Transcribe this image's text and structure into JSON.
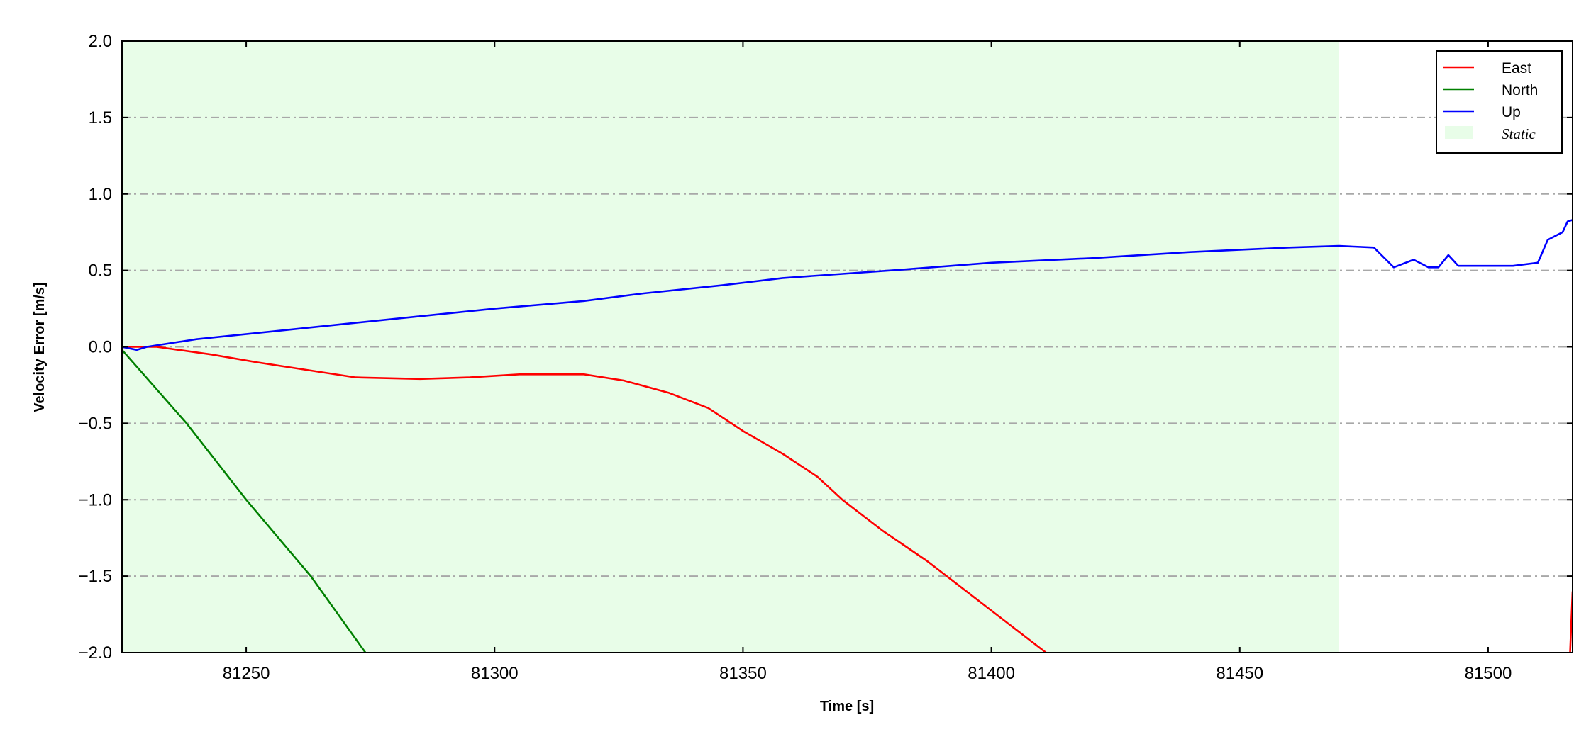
{
  "chart_data": {
    "type": "line",
    "title": "",
    "xlabel": "Time [s]",
    "ylabel": "Velocity Error [m/s]",
    "xlim": [
      81225,
      81517
    ],
    "ylim": [
      -2.0,
      2.0
    ],
    "xticks": [
      81250,
      81300,
      81350,
      81400,
      81450,
      81500
    ],
    "xtick_labels": [
      "81250",
      "81300",
      "81350",
      "81400",
      "81450",
      "81500"
    ],
    "yticks": [
      -2.0,
      -1.5,
      -1.0,
      -0.5,
      0.0,
      0.5,
      1.0,
      1.5,
      2.0
    ],
    "ytick_labels": [
      "−2.0",
      "−1.5",
      "−1.0",
      "−0.5",
      "0.0",
      "0.5",
      "1.0",
      "1.5",
      "2.0"
    ],
    "grid": "horizontal dash-dot",
    "legend_position": "top-right",
    "shaded_regions": [
      {
        "name": "Static",
        "x": [
          81225,
          81470
        ],
        "color": "#e8fde8"
      }
    ],
    "series": [
      {
        "name": "East",
        "color": "#ff0000",
        "segments": [
          {
            "x": [
              81225,
              81232,
              81243,
              81252,
              81262,
              81272,
              81285,
              81295,
              81305,
              81318,
              81326,
              81335,
              81343,
              81350,
              81358,
              81365,
              81370,
              81378,
              81387,
              81395,
              81403,
              81411
            ],
            "y": [
              0.0,
              0.0,
              -0.05,
              -0.1,
              -0.15,
              -0.2,
              -0.21,
              -0.2,
              -0.18,
              -0.18,
              -0.22,
              -0.3,
              -0.4,
              -0.55,
              -0.7,
              -0.85,
              -1.0,
              -1.2,
              -1.4,
              -1.6,
              -1.8,
              -2.0
            ]
          },
          {
            "x": [
              81516.5,
              81517
            ],
            "y": [
              -2.0,
              -1.6
            ]
          }
        ]
      },
      {
        "name": "North",
        "color": "#008000",
        "segments": [
          {
            "x": [
              81225,
              81238,
              81250,
              81263,
              81274
            ],
            "y": [
              -0.02,
              -0.5,
              -1.0,
              -1.5,
              -2.0
            ]
          }
        ]
      },
      {
        "name": "Up",
        "color": "#0000ff",
        "segments": [
          {
            "x": [
              81225,
              81228,
              81230,
              81240,
              81255,
              81270,
              81285,
              81300,
              81318,
              81330,
              81345,
              81358,
              81380,
              81400,
              81420,
              81440,
              81460,
              81470,
              81477,
              81481,
              81485,
              81488,
              81490,
              81492,
              81494,
              81505,
              81510,
              81512,
              81515,
              81516,
              81517
            ],
            "y": [
              0.0,
              -0.02,
              0.0,
              0.05,
              0.1,
              0.15,
              0.2,
              0.25,
              0.3,
              0.35,
              0.4,
              0.45,
              0.5,
              0.55,
              0.58,
              0.62,
              0.65,
              0.66,
              0.65,
              0.52,
              0.57,
              0.52,
              0.52,
              0.6,
              0.53,
              0.53,
              0.55,
              0.7,
              0.75,
              0.82,
              0.83
            ]
          }
        ]
      }
    ]
  },
  "legend": {
    "items": [
      {
        "label": "East",
        "color": "#ff0000",
        "kind": "line"
      },
      {
        "label": "North",
        "color": "#008000",
        "kind": "line"
      },
      {
        "label": "Up",
        "color": "#0000ff",
        "kind": "line"
      },
      {
        "label": "Static",
        "color": "#e8fde8",
        "kind": "patch"
      }
    ]
  }
}
